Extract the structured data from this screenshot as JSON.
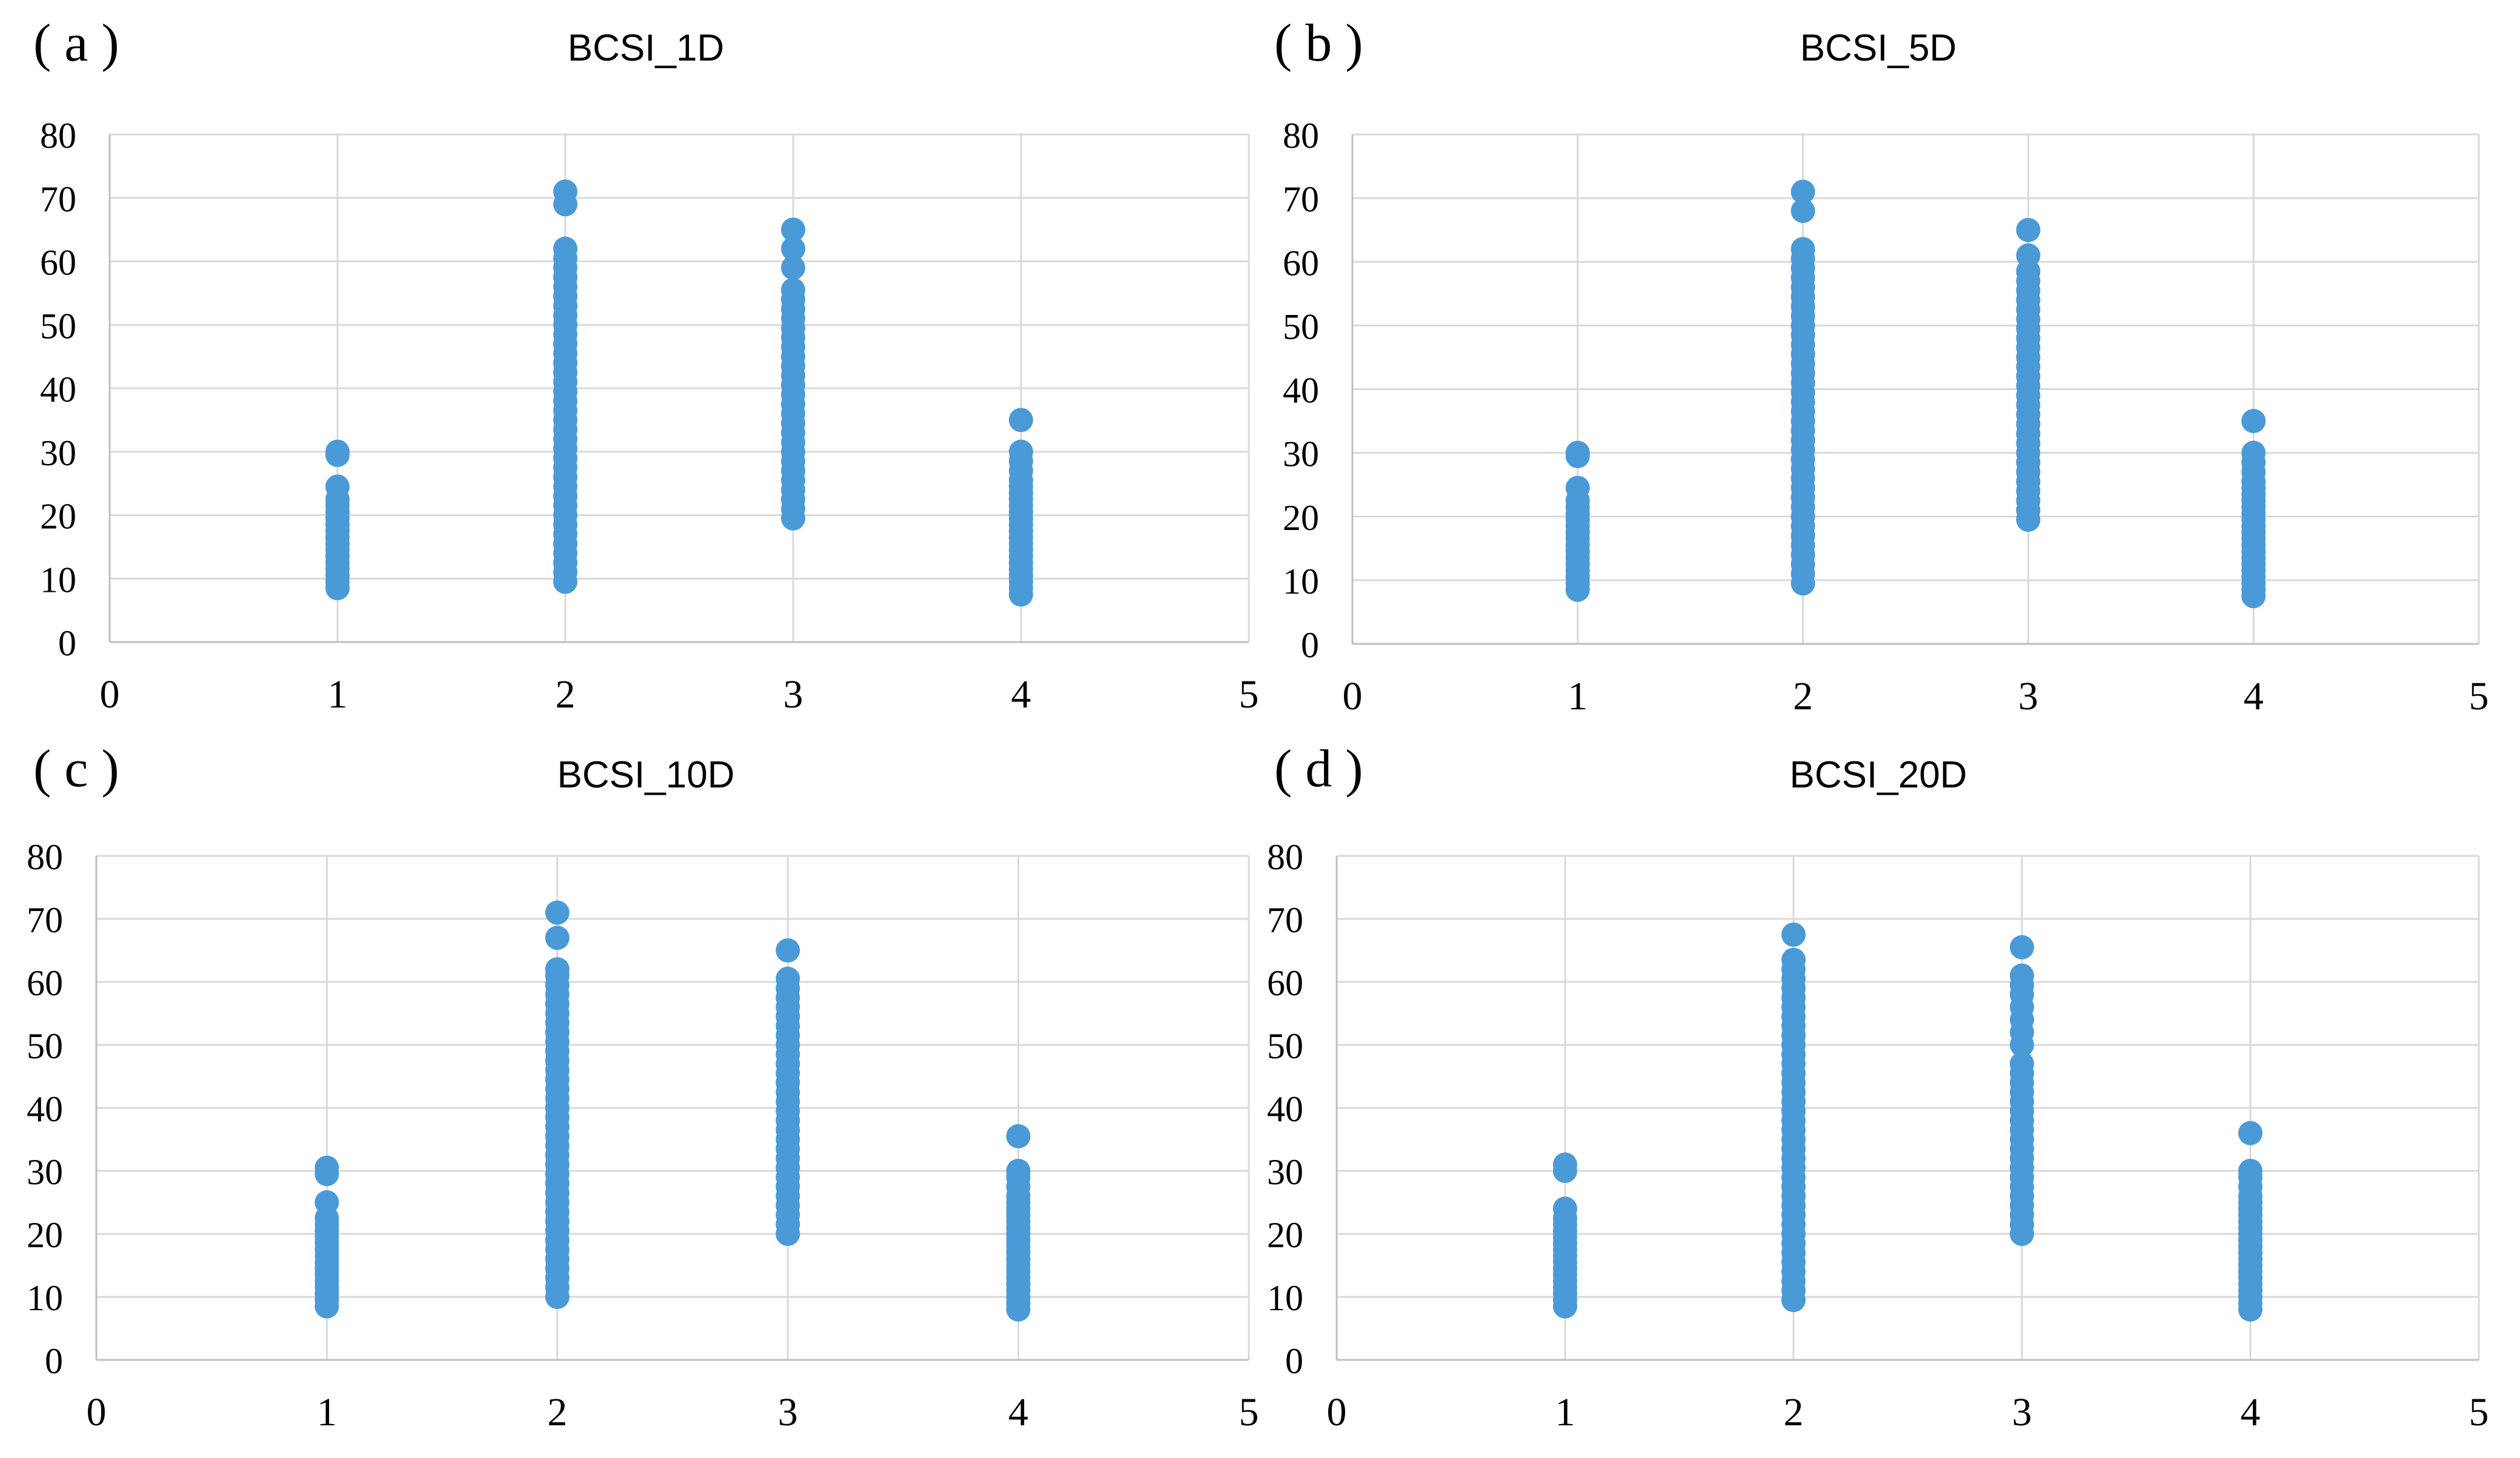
{
  "figure": {
    "point_color": "#4a9ad8",
    "grid_color": "#d9d9d9"
  },
  "chart_data": [
    {
      "type": "scatter",
      "panel_label": "( a )",
      "title": "BCSI_1D",
      "xlabel": "",
      "ylabel": "",
      "xlim": [
        0,
        5
      ],
      "ylim": [
        0,
        80
      ],
      "x_ticks": [
        0,
        1,
        2,
        3,
        4,
        5
      ],
      "y_ticks": [
        0,
        10,
        20,
        30,
        40,
        50,
        60,
        70,
        80
      ],
      "grid": true,
      "series": [
        {
          "name": "1",
          "x": 1,
          "y": [
            8.5,
            9.5,
            10.5,
            11.5,
            12.5,
            13.5,
            14.5,
            15.5,
            16.5,
            17.5,
            18.5,
            19.5,
            20.5,
            21.5,
            22.5,
            24.5,
            29.5,
            30.0
          ]
        },
        {
          "name": "2",
          "x": 2,
          "y": [
            9.5,
            11,
            12.5,
            14,
            15.5,
            17,
            18.5,
            20,
            21.5,
            23,
            24.5,
            26,
            27.5,
            29,
            30.5,
            32,
            33.5,
            35,
            36.5,
            38,
            39.5,
            41,
            42.5,
            44,
            45.5,
            47,
            48.5,
            50,
            51.5,
            53,
            54.5,
            56,
            57.5,
            59,
            60.5,
            62,
            69,
            71
          ]
        },
        {
          "name": "3",
          "x": 3,
          "y": [
            19.5,
            21,
            22.5,
            24,
            25.5,
            27,
            28.5,
            30,
            31.5,
            33,
            34.5,
            36,
            37.5,
            39,
            40.5,
            42,
            43.5,
            45,
            46.5,
            48,
            49.5,
            51,
            52.5,
            54,
            55.5,
            59,
            62,
            65
          ]
        },
        {
          "name": "4",
          "x": 4,
          "y": [
            7.5,
            8.5,
            9.5,
            10.5,
            11.5,
            12.5,
            13.5,
            14.5,
            15.5,
            16.5,
            17.5,
            18.5,
            19.5,
            20.5,
            21.5,
            22.5,
            23.5,
            24.5,
            25.5,
            27,
            28.5,
            30,
            35
          ]
        }
      ]
    },
    {
      "type": "scatter",
      "panel_label": "( b )",
      "title": "BCSI_5D",
      "xlabel": "",
      "ylabel": "",
      "xlim": [
        0,
        5
      ],
      "ylim": [
        0,
        80
      ],
      "x_ticks": [
        0,
        1,
        2,
        3,
        4,
        5
      ],
      "y_ticks": [
        0,
        10,
        20,
        30,
        40,
        50,
        60,
        70,
        80
      ],
      "grid": true,
      "series": [
        {
          "name": "1",
          "x": 1,
          "y": [
            8.5,
            9.5,
            10.5,
            11.5,
            12.5,
            13.5,
            14.5,
            15.5,
            16.5,
            17.5,
            18.5,
            19.5,
            20.5,
            21.5,
            22.5,
            24.5,
            29.5,
            30.0
          ]
        },
        {
          "name": "2",
          "x": 2,
          "y": [
            9.5,
            11,
            12.5,
            14,
            15.5,
            17,
            18.5,
            20,
            21.5,
            23,
            24.5,
            26,
            27.5,
            29,
            30.5,
            32,
            33.5,
            35,
            36.5,
            38,
            39.5,
            41,
            42.5,
            44,
            45.5,
            47,
            48.5,
            50,
            51.5,
            53,
            54.5,
            56,
            57.5,
            59,
            60.5,
            62,
            68,
            71
          ]
        },
        {
          "name": "3",
          "x": 3,
          "y": [
            19.5,
            21,
            22.5,
            24,
            25.5,
            27,
            28.5,
            30,
            31.5,
            33,
            34.5,
            36,
            37.5,
            39,
            40.5,
            42,
            43.5,
            45,
            46.5,
            48,
            49.5,
            51,
            52.5,
            54,
            55.5,
            57,
            58.5,
            61,
            65
          ]
        },
        {
          "name": "4",
          "x": 4,
          "y": [
            7.5,
            8.5,
            9.5,
            10.5,
            11.5,
            12.5,
            13.5,
            14.5,
            15.5,
            16.5,
            17.5,
            18.5,
            19.5,
            20.5,
            21.5,
            22.5,
            23.5,
            24.5,
            25.5,
            27,
            28.5,
            30,
            35
          ]
        }
      ]
    },
    {
      "type": "scatter",
      "panel_label": "( c )",
      "title": "BCSI_10D",
      "xlabel": "",
      "ylabel": "",
      "xlim": [
        0,
        5
      ],
      "ylim": [
        0,
        80
      ],
      "x_ticks": [
        0,
        1,
        2,
        3,
        4,
        5
      ],
      "y_ticks": [
        0,
        10,
        20,
        30,
        40,
        50,
        60,
        70,
        80
      ],
      "grid": true,
      "series": [
        {
          "name": "1",
          "x": 1,
          "y": [
            8.5,
            9.5,
            10.5,
            11.5,
            12.5,
            13.5,
            14.5,
            15.5,
            16.5,
            17.5,
            18.5,
            19.5,
            20.5,
            21.5,
            22.5,
            25,
            29.5,
            30.5
          ]
        },
        {
          "name": "2",
          "x": 2,
          "y": [
            10,
            11.5,
            13,
            14.5,
            16,
            17.5,
            19,
            20.5,
            22,
            23.5,
            25,
            26.5,
            28,
            29.5,
            31,
            32.5,
            34,
            35.5,
            37,
            38.5,
            40,
            41.5,
            43,
            44.5,
            46,
            47.5,
            49,
            50.5,
            52,
            53.5,
            55,
            56.5,
            58,
            59.5,
            61,
            62,
            67,
            71
          ]
        },
        {
          "name": "3",
          "x": 3,
          "y": [
            20,
            21.5,
            23,
            24.5,
            26,
            27.5,
            29,
            30.5,
            32,
            33.5,
            35,
            36.5,
            38,
            39.5,
            41,
            42.5,
            44,
            45.5,
            47,
            48.5,
            50,
            51.5,
            53,
            54.5,
            56,
            57.5,
            59,
            60.5,
            65
          ]
        },
        {
          "name": "4",
          "x": 4,
          "y": [
            8,
            9,
            10,
            11,
            12,
            13,
            14,
            15,
            16,
            17,
            18,
            19,
            20,
            21,
            22,
            23,
            24,
            25,
            26,
            27.5,
            29,
            30,
            35.5
          ]
        }
      ]
    },
    {
      "type": "scatter",
      "panel_label": "( d )",
      "title": "BCSI_20D",
      "xlabel": "",
      "ylabel": "",
      "xlim": [
        0,
        5
      ],
      "ylim": [
        0,
        80
      ],
      "x_ticks": [
        0,
        1,
        2,
        3,
        4,
        5
      ],
      "y_ticks": [
        0,
        10,
        20,
        30,
        40,
        50,
        60,
        70,
        80
      ],
      "grid": true,
      "series": [
        {
          "name": "1",
          "x": 1,
          "y": [
            8.5,
            9.5,
            10.5,
            11.5,
            12.5,
            13.5,
            14.5,
            15.5,
            16.5,
            17.5,
            18.5,
            19.5,
            20.5,
            21.5,
            22.5,
            24,
            30,
            31
          ]
        },
        {
          "name": "2",
          "x": 2,
          "y": [
            9.5,
            11,
            12.5,
            14,
            15.5,
            17,
            18.5,
            20,
            21.5,
            23,
            24.5,
            26,
            27.5,
            29,
            30.5,
            32,
            33.5,
            35,
            36.5,
            38,
            39.5,
            41,
            42.5,
            44,
            45.5,
            47,
            48.5,
            50,
            51.5,
            53,
            54.5,
            56,
            57.5,
            59,
            60.5,
            62,
            63.5,
            67.5
          ]
        },
        {
          "name": "3",
          "x": 3,
          "y": [
            20,
            21.5,
            23,
            24.5,
            26,
            27.5,
            29,
            30.5,
            32,
            33.5,
            35,
            36.5,
            38,
            39.5,
            41,
            42.5,
            44,
            45.5,
            47,
            50,
            52,
            54,
            56,
            58,
            59.5,
            61,
            65.5
          ]
        },
        {
          "name": "4",
          "x": 4,
          "y": [
            8,
            9,
            10,
            11,
            12,
            13,
            14,
            15,
            16,
            17,
            18,
            19,
            20,
            21,
            22,
            23,
            24,
            25,
            26,
            27.5,
            29,
            30,
            36
          ]
        }
      ]
    }
  ]
}
